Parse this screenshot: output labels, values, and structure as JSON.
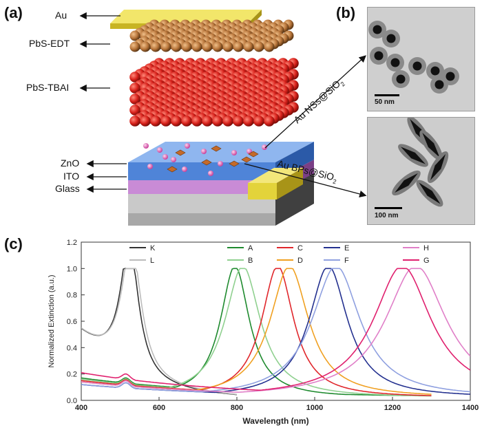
{
  "panels": {
    "a": "(a)",
    "b": "(b)",
    "c": "(c)"
  },
  "device": {
    "layers": {
      "au": "Au",
      "pbs_edt": "PbS-EDT",
      "pbs_tbai": "PbS-TBAI",
      "zno": "ZnO",
      "ito": "ITO",
      "glass": "Glass"
    },
    "arrow_labels": {
      "nss": "Au NSs@SiO2",
      "bps": "Au BPs@SiO2"
    },
    "colors": {
      "au": "#e3d33a",
      "pbs_edt": "#b8753a",
      "pbs_tbai": "#d8221c",
      "zno": "#5b8fe0",
      "ito": "#c98bd6",
      "glass": "#bdbdbd"
    }
  },
  "tem": {
    "top_scale": "50 nm",
    "bottom_scale": "100 nm"
  },
  "chart_data": {
    "type": "line",
    "xlabel": "Wavelength (nm)",
    "ylabel": "Normalized Extinction (a.u.)",
    "xlim": [
      400,
      1400
    ],
    "ylim": [
      0,
      1.2
    ],
    "xticks": [
      400,
      600,
      800,
      1000,
      1200,
      1400
    ],
    "yticks": [
      0.0,
      0.2,
      0.4,
      0.6,
      0.8,
      1.0,
      1.2
    ],
    "ytick_labels": [
      "0.0",
      "0.2",
      "0.4",
      "0.6",
      "0.8",
      "1.0",
      "1.2"
    ],
    "legend": [
      {
        "name": "K",
        "color": "#333333"
      },
      {
        "name": "L",
        "color": "#bbbbbb"
      },
      {
        "name": "A",
        "color": "#1e8a2e"
      },
      {
        "name": "B",
        "color": "#8fd08f"
      },
      {
        "name": "C",
        "color": "#e0262b"
      },
      {
        "name": "D",
        "color": "#f0a020"
      },
      {
        "name": "E",
        "color": "#23308f"
      },
      {
        "name": "F",
        "color": "#8fa0e0"
      },
      {
        "name": "H",
        "color": "#e07fc8"
      },
      {
        "name": "G",
        "color": "#e0206e"
      }
    ],
    "series": [
      {
        "name": "K",
        "color": "#333333",
        "peak": 525,
        "width": 28,
        "base": "sphere",
        "start": 0.5,
        "end": 800
      },
      {
        "name": "L",
        "color": "#bbbbbb",
        "peak": 530,
        "width": 30,
        "base": "sphere",
        "start": 0.5,
        "end": 800
      },
      {
        "name": "A",
        "color": "#1e8a2e",
        "peak": 795,
        "width": 45,
        "start": 0.15,
        "end": 1250
      },
      {
        "name": "B",
        "color": "#8fd08f",
        "peak": 815,
        "width": 55,
        "start": 0.14,
        "end": 1300
      },
      {
        "name": "C",
        "color": "#e0262b",
        "peak": 905,
        "width": 50,
        "start": 0.13,
        "end": 1300
      },
      {
        "name": "D",
        "color": "#f0a020",
        "peak": 935,
        "width": 60,
        "start": 0.12,
        "end": 1300
      },
      {
        "name": "E",
        "color": "#23308f",
        "peak": 1035,
        "width": 60,
        "start": 0.1,
        "end": 1400
      },
      {
        "name": "F",
        "color": "#8fa0e0",
        "peak": 1055,
        "width": 75,
        "start": 0.1,
        "end": 1400
      },
      {
        "name": "H",
        "color": "#e07fc8",
        "peak": 1260,
        "width": 95,
        "start": 0.12,
        "end": 1400
      },
      {
        "name": "G",
        "color": "#e0206e",
        "peak": 1225,
        "width": 90,
        "start": 0.19,
        "end": 1400
      }
    ]
  }
}
